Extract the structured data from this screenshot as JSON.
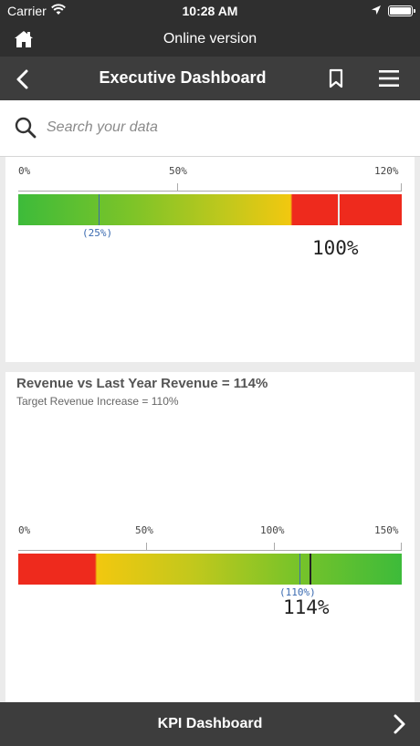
{
  "status_bar": {
    "carrier": "Carrier",
    "time": "10:28 AM"
  },
  "version_bar": {
    "title": "Online version"
  },
  "header": {
    "title": "Executive Dashboard"
  },
  "search": {
    "placeholder": "Search your data"
  },
  "kpi1": {
    "scale_labels": [
      "0%",
      "50%",
      "120%"
    ],
    "target_label": "(25%)",
    "value_label": "100%",
    "target_value": 25,
    "actual_value": 100,
    "max": 120
  },
  "kpi2": {
    "title": "Revenue vs Last Year Revenue = 114%",
    "subtitle": "Target Revenue Increase = 110%",
    "scale_labels": [
      "0%",
      "50%",
      "100%",
      "150%"
    ],
    "target_label": "(110%)",
    "value_label": "114%",
    "target_value": 110,
    "actual_value": 114,
    "max": 150
  },
  "footer": {
    "title": "KPI Dashboard"
  },
  "colors": {
    "dark_bar": "#2f2f2f",
    "header_bg": "#3d3d3d",
    "green": "#3dbb3a",
    "yellow": "#f2c80f",
    "red": "#ee2a1d",
    "target_blue": "#3a6ab0"
  }
}
